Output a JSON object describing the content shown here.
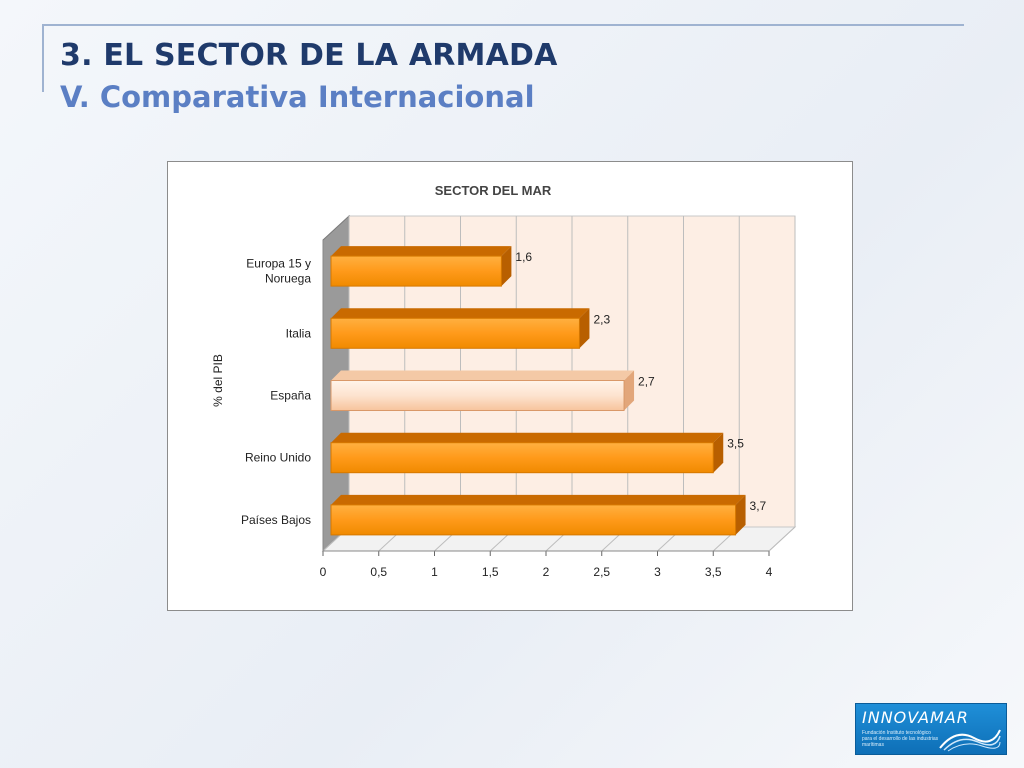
{
  "header": {
    "title": "3. EL SECTOR DE LA ARMADA",
    "subtitle": "V. Comparativa Internacional"
  },
  "logo": {
    "text": "INNOVAMAR",
    "tagline": "Fundación Instituto tecnológico para el desarrollo de las industrias marítimas",
    "icon": "wave-icon"
  },
  "colors": {
    "title": "#1f3a6b",
    "subtitle": "#5b7fc4",
    "bar": "#ff9a1a",
    "bar_dark": "#c96a00",
    "bar_highlight": "#fde3cf",
    "plot_bg": "#fdeee4"
  },
  "chart_data": {
    "type": "bar",
    "orientation": "horizontal",
    "style": "3d",
    "title": "SECTOR DEL MAR",
    "xlabel": "",
    "ylabel": "% del PIB",
    "categories": [
      "Europa 15 y Noruega",
      "Italia",
      "España",
      "Reino Unido",
      "Países Bajos"
    ],
    "category_labels": [
      [
        "Europa 15 y",
        "Noruega"
      ],
      [
        "Italia"
      ],
      [
        "España"
      ],
      [
        "Reino Unido"
      ],
      [
        "Países Bajos"
      ]
    ],
    "values": [
      1.6,
      2.3,
      2.7,
      3.5,
      3.7
    ],
    "data_labels": [
      "1,6",
      "2,3",
      "2,7",
      "3,5",
      "3,7"
    ],
    "highlight": "España",
    "xlim": [
      0,
      4
    ],
    "ticks": [
      0,
      0.5,
      1,
      1.5,
      2,
      2.5,
      3,
      3.5,
      4
    ],
    "tick_labels": [
      "0",
      "0,5",
      "1",
      "1,5",
      "2",
      "2,5",
      "3",
      "3,5",
      "4"
    ],
    "grid": true,
    "legend": "none"
  }
}
